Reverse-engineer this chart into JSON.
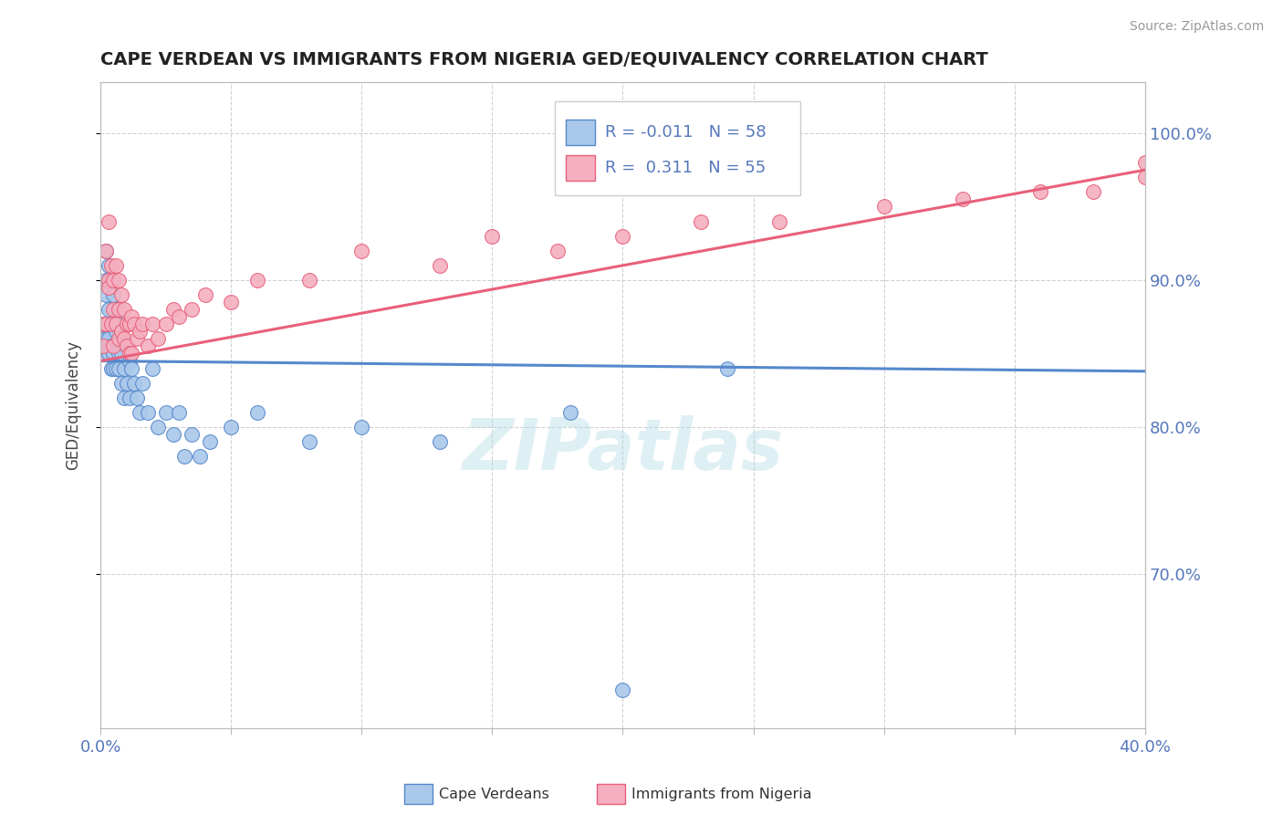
{
  "title": "CAPE VERDEAN VS IMMIGRANTS FROM NIGERIA GED/EQUIVALENCY CORRELATION CHART",
  "source_text": "Source: ZipAtlas.com",
  "ylabel": "GED/Equivalency",
  "xlim": [
    0.0,
    0.4
  ],
  "ylim": [
    0.595,
    1.035
  ],
  "ytick_labels": [
    "70.0%",
    "80.0%",
    "90.0%",
    "100.0%"
  ],
  "ytick_values": [
    0.7,
    0.8,
    0.9,
    1.0
  ],
  "blue_color": "#aac8ea",
  "pink_color": "#f4afc0",
  "blue_line_color": "#5588cc",
  "pink_line_color": "#e8607a",
  "legend_r1": "-0.011",
  "legend_n1": "58",
  "legend_r2": "0.311",
  "legend_n2": "55",
  "watermark": "ZIPatlas",
  "blue_scatter_x": [
    0.001,
    0.001,
    0.001,
    0.002,
    0.002,
    0.002,
    0.002,
    0.003,
    0.003,
    0.003,
    0.003,
    0.003,
    0.004,
    0.004,
    0.004,
    0.004,
    0.005,
    0.005,
    0.005,
    0.005,
    0.006,
    0.006,
    0.006,
    0.007,
    0.007,
    0.007,
    0.008,
    0.008,
    0.008,
    0.009,
    0.009,
    0.01,
    0.01,
    0.011,
    0.011,
    0.012,
    0.013,
    0.014,
    0.015,
    0.016,
    0.018,
    0.02,
    0.022,
    0.025,
    0.028,
    0.03,
    0.032,
    0.035,
    0.038,
    0.042,
    0.05,
    0.06,
    0.08,
    0.1,
    0.13,
    0.18,
    0.24,
    0.2
  ],
  "blue_scatter_y": [
    0.86,
    0.87,
    0.85,
    0.89,
    0.92,
    0.86,
    0.9,
    0.87,
    0.91,
    0.86,
    0.85,
    0.88,
    0.84,
    0.9,
    0.87,
    0.855,
    0.89,
    0.85,
    0.84,
    0.87,
    0.88,
    0.84,
    0.865,
    0.87,
    0.85,
    0.84,
    0.86,
    0.83,
    0.85,
    0.84,
    0.82,
    0.855,
    0.83,
    0.845,
    0.82,
    0.84,
    0.83,
    0.82,
    0.81,
    0.83,
    0.81,
    0.84,
    0.8,
    0.81,
    0.795,
    0.81,
    0.78,
    0.795,
    0.78,
    0.79,
    0.8,
    0.81,
    0.79,
    0.8,
    0.79,
    0.81,
    0.84,
    0.621
  ],
  "pink_scatter_x": [
    0.001,
    0.001,
    0.002,
    0.002,
    0.003,
    0.003,
    0.003,
    0.004,
    0.004,
    0.005,
    0.005,
    0.005,
    0.006,
    0.006,
    0.007,
    0.007,
    0.007,
    0.008,
    0.008,
    0.009,
    0.009,
    0.01,
    0.01,
    0.011,
    0.011,
    0.012,
    0.012,
    0.013,
    0.014,
    0.015,
    0.016,
    0.018,
    0.02,
    0.022,
    0.025,
    0.028,
    0.03,
    0.035,
    0.04,
    0.05,
    0.06,
    0.08,
    0.1,
    0.13,
    0.15,
    0.175,
    0.2,
    0.23,
    0.26,
    0.3,
    0.33,
    0.36,
    0.38,
    0.4,
    0.4
  ],
  "pink_scatter_y": [
    0.855,
    0.87,
    0.92,
    0.87,
    0.9,
    0.94,
    0.895,
    0.87,
    0.91,
    0.88,
    0.855,
    0.9,
    0.87,
    0.91,
    0.88,
    0.86,
    0.9,
    0.865,
    0.89,
    0.86,
    0.88,
    0.87,
    0.855,
    0.87,
    0.85,
    0.875,
    0.85,
    0.87,
    0.86,
    0.865,
    0.87,
    0.855,
    0.87,
    0.86,
    0.87,
    0.88,
    0.875,
    0.88,
    0.89,
    0.885,
    0.9,
    0.9,
    0.92,
    0.91,
    0.93,
    0.92,
    0.93,
    0.94,
    0.94,
    0.95,
    0.955,
    0.96,
    0.96,
    0.97,
    0.98
  ],
  "blue_trend_x": [
    0.0,
    0.4
  ],
  "blue_trend_y": [
    0.845,
    0.838
  ],
  "pink_trend_x": [
    0.0,
    0.4
  ],
  "pink_trend_y": [
    0.845,
    0.975
  ]
}
